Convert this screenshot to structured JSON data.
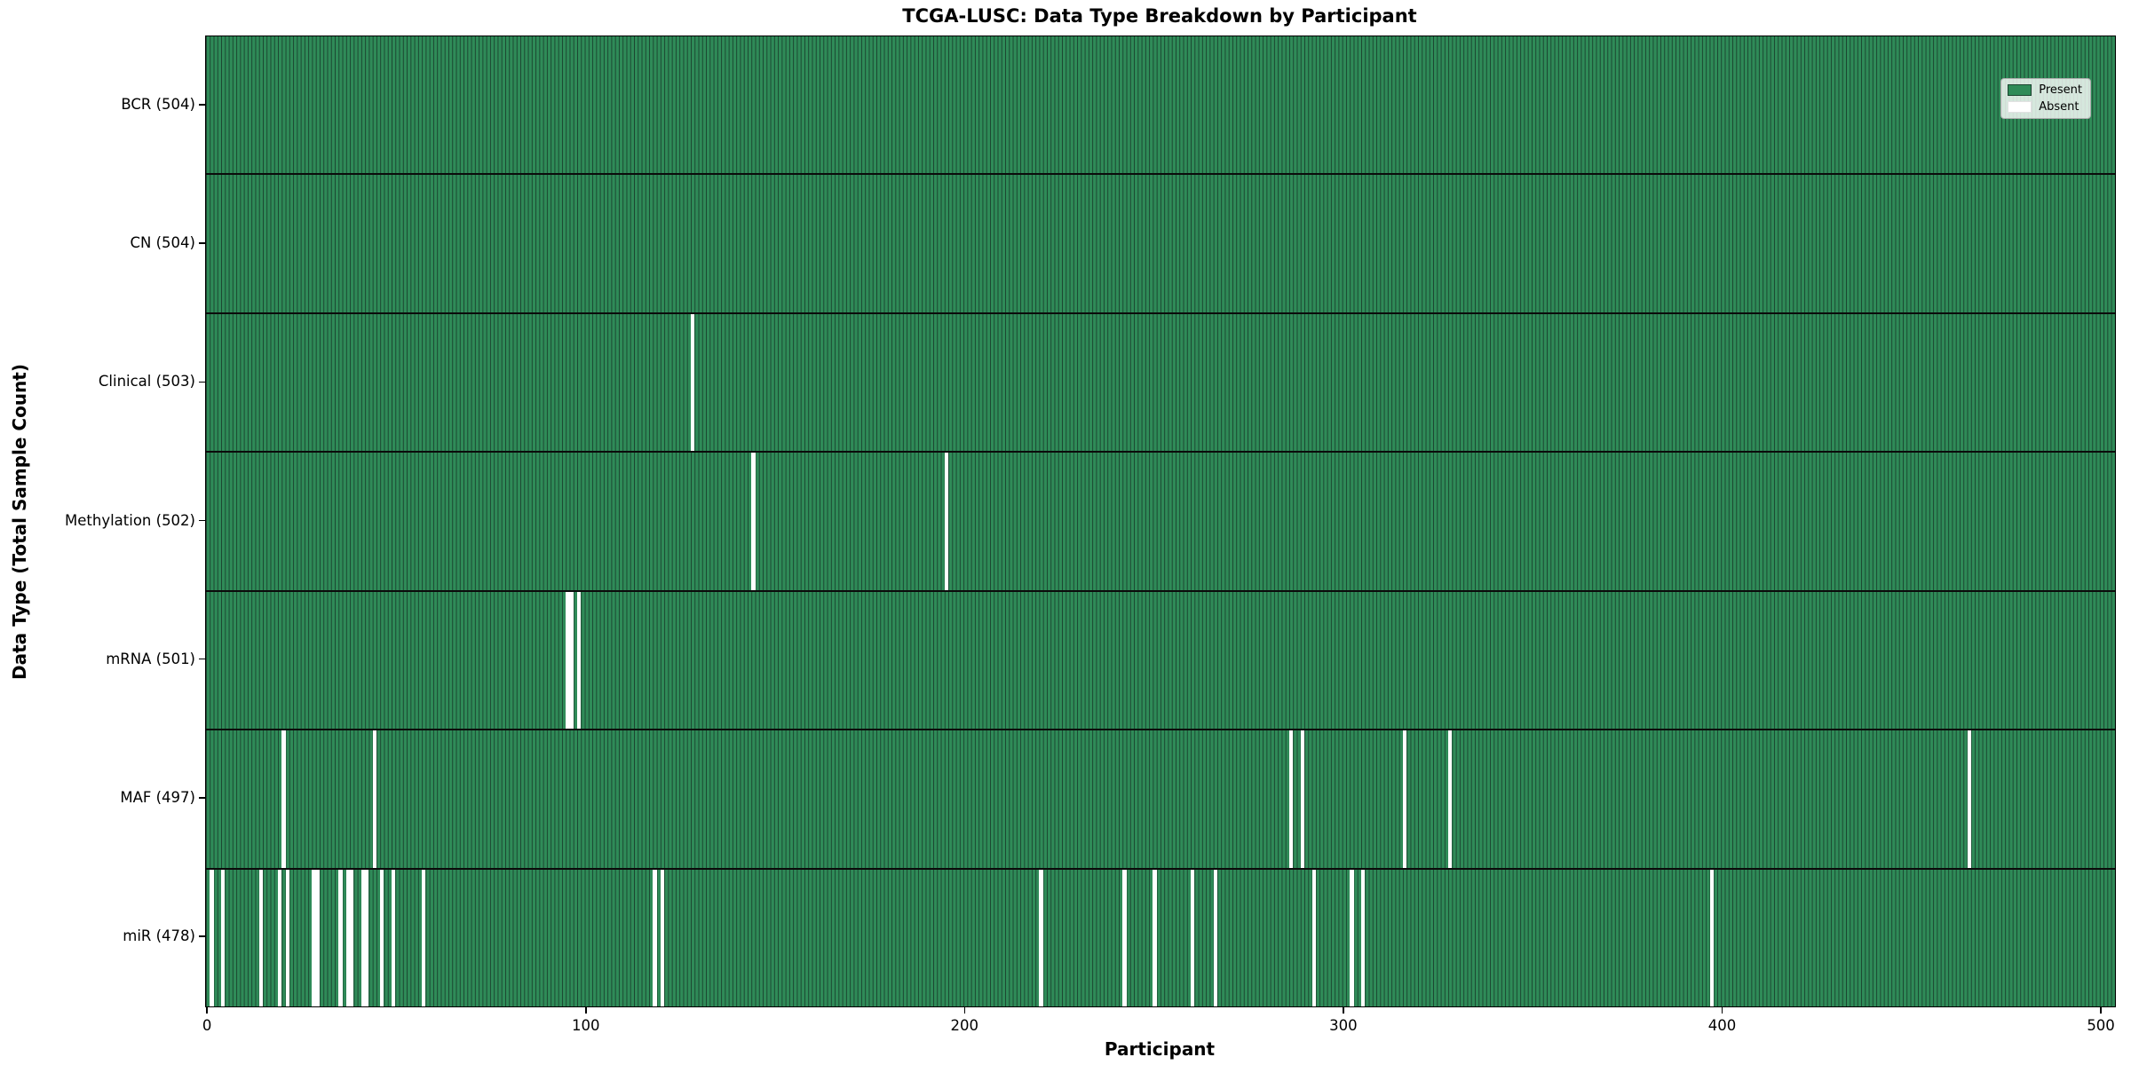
{
  "title": "TCGA-LUSC: Data Type Breakdown by Participant",
  "xlabel": "Participant",
  "ylabel": "Data Type (Total Sample Count)",
  "legend": {
    "present_label": "Present",
    "absent_label": "Absent"
  },
  "colors": {
    "present": "#2f8b58",
    "absent": "#ffffff",
    "cell_edge": "#1b4530",
    "row_separator": "#0b0b0b",
    "legend_border": "#adadad"
  },
  "chart_data": {
    "type": "heatmap",
    "title": "TCGA-LUSC: Data Type Breakdown by Participant",
    "xlabel": "Participant",
    "ylabel": "Data Type (Total Sample Count)",
    "legend": [
      "Present",
      "Absent"
    ],
    "legend_position": "upper right",
    "n_participants": 504,
    "x_ticks": [
      0,
      100,
      200,
      300,
      400,
      500
    ],
    "x_range": [
      0,
      504
    ],
    "rows": [
      {
        "label": "BCR (504)",
        "name": "BCR",
        "present_count": 504,
        "absent_participants": []
      },
      {
        "label": "CN (504)",
        "name": "CN",
        "present_count": 504,
        "absent_participants": []
      },
      {
        "label": "Clinical (503)",
        "name": "Clinical",
        "present_count": 503,
        "absent_participants": [
          128
        ]
      },
      {
        "label": "Methylation (502)",
        "name": "Methylation",
        "present_count": 502,
        "absent_participants": [
          144,
          195
        ]
      },
      {
        "label": "mRNA (501)",
        "name": "mRNA",
        "present_count": 501,
        "absent_participants": [
          95,
          96,
          98
        ]
      },
      {
        "label": "MAF (497)",
        "name": "MAF",
        "present_count": 497,
        "absent_participants": [
          20,
          44,
          286,
          289,
          316,
          328,
          465
        ]
      },
      {
        "label": "miR (478)",
        "name": "miR",
        "present_count": 478,
        "absent_participants": [
          1,
          4,
          14,
          19,
          21,
          28,
          29,
          35,
          37,
          38,
          41,
          42,
          46,
          49,
          57,
          118,
          120,
          220,
          242,
          250,
          260,
          266,
          292,
          302,
          305,
          397
        ]
      }
    ]
  }
}
